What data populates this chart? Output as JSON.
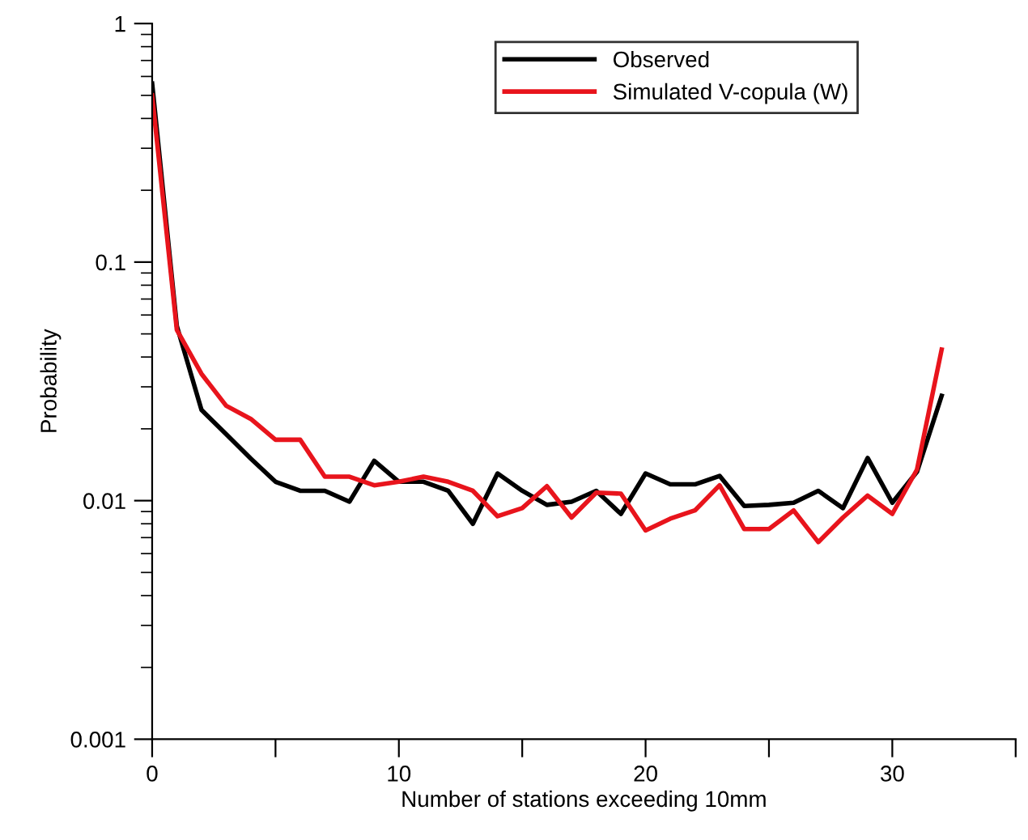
{
  "chart_data": {
    "type": "line",
    "xlabel": "Number of stations exceeding 10mm",
    "ylabel": "Probability",
    "x": [
      0,
      1,
      2,
      3,
      4,
      5,
      6,
      7,
      8,
      9,
      10,
      11,
      12,
      13,
      14,
      15,
      16,
      17,
      18,
      19,
      20,
      21,
      22,
      23,
      24,
      25,
      26,
      27,
      28,
      29,
      30,
      31,
      32
    ],
    "series": [
      {
        "name": "Observed",
        "color": "#000000",
        "values": [
          0.56,
          0.054,
          0.024,
          0.019,
          0.015,
          0.012,
          0.011,
          0.011,
          0.0099,
          0.0147,
          0.012,
          0.012,
          0.011,
          0.008,
          0.013,
          0.011,
          0.0096,
          0.0099,
          0.011,
          0.0088,
          0.013,
          0.0117,
          0.0117,
          0.0127,
          0.0095,
          0.0096,
          0.0098,
          0.011,
          0.0093,
          0.0151,
          0.0098,
          0.0132,
          0.0275
        ]
      },
      {
        "name": "Simulated V-copula (W)",
        "color": "#e8141c",
        "values": [
          0.5,
          0.052,
          0.034,
          0.025,
          0.022,
          0.018,
          0.018,
          0.0126,
          0.0126,
          0.0116,
          0.012,
          0.0126,
          0.012,
          0.011,
          0.0086,
          0.0093,
          0.0115,
          0.0085,
          0.0108,
          0.0107,
          0.0075,
          0.0084,
          0.0091,
          0.0116,
          0.0076,
          0.0076,
          0.0091,
          0.0067,
          0.0085,
          0.0105,
          0.0088,
          0.0135,
          0.043
        ]
      }
    ],
    "log": "y",
    "xlim": [
      0,
      35
    ],
    "xticks": [
      0,
      {
        "value": 5,
        "label": null
      },
      10,
      {
        "value": 15,
        "label": null
      },
      20,
      {
        "value": 25,
        "label": null
      },
      30,
      {
        "value": 35,
        "label": null
      }
    ],
    "ylim": [
      0.001,
      1
    ],
    "yticks": [
      0.001,
      0.01,
      0.1,
      1
    ],
    "grid": false,
    "legend": "top right",
    "marker": "none",
    "line_style": "solid"
  }
}
